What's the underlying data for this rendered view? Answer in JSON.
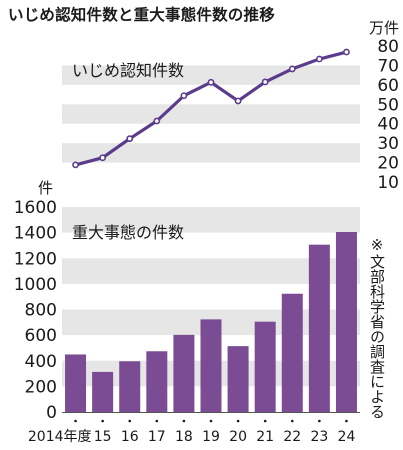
{
  "title": "いじめ認知件数と重大事態件数の推移",
  "note": "※文部科学省の調査による",
  "chart_data": [
    {
      "type": "line",
      "title": "いじめ認知件数",
      "unit": "万件",
      "x": [
        "2014年度",
        "15",
        "16",
        "17",
        "18",
        "19",
        "20",
        "21",
        "22",
        "23",
        "24"
      ],
      "values": [
        18.8,
        22.5,
        32.3,
        41.4,
        54.4,
        61.3,
        51.7,
        61.5,
        68.2,
        73.3,
        76.9
      ],
      "ylim": [
        10,
        80
      ],
      "yticks": [
        10,
        20,
        30,
        40,
        50,
        60,
        70,
        80
      ],
      "color": "#5b3b8c",
      "grid": "banded"
    },
    {
      "type": "bar",
      "title": "重大事態の件数",
      "unit": "件",
      "categories": [
        "2014年度",
        "15",
        "16",
        "17",
        "18",
        "19",
        "20",
        "21",
        "22",
        "23",
        "24"
      ],
      "values": [
        449,
        313,
        396,
        474,
        602,
        723,
        514,
        705,
        923,
        1306,
        1405
      ],
      "ylim": [
        0,
        1600
      ],
      "yticks": [
        0,
        200,
        400,
        600,
        800,
        1000,
        1200,
        1400,
        1600
      ],
      "color": "#7b4b94",
      "grid": "banded"
    }
  ]
}
